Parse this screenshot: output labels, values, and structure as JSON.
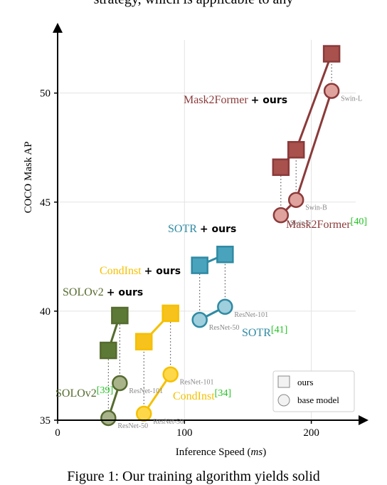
{
  "page": {
    "top_text": "strategy, which is applicable to any",
    "caption": "Figure 1: Our training algorithm yields solid"
  },
  "chart_data": {
    "type": "scatter",
    "xlabel": "Inference Speed",
    "xlabel_unit": "ms",
    "ylabel": "COCO Mask AP",
    "xlim": [
      0,
      235
    ],
    "ylim": [
      35,
      52.7
    ],
    "xticks": [
      0,
      100,
      200
    ],
    "yticks": [
      35,
      40,
      45,
      50
    ],
    "grid": true,
    "legend": {
      "position": "bottom-right",
      "ours_label": "ours",
      "base_label": "base model"
    },
    "groups": [
      {
        "id": "solov2",
        "color": "#556b2f",
        "fill": "#a9b38a",
        "sq_fill": "#5c7a35",
        "label_base": "SOLOv2",
        "label_base_ref": "[39]",
        "label_ours": "SOLOv2",
        "label_ours_suffix": "+ ours",
        "points": [
          {
            "base_x": 40,
            "base_y": 35.1,
            "ours_x": 40,
            "ours_y": 38.2,
            "tag": "ResNet-50"
          },
          {
            "base_x": 49,
            "base_y": 36.7,
            "ours_x": 49,
            "ours_y": 39.8,
            "tag": "ResNet-101"
          }
        ]
      },
      {
        "id": "condinst",
        "color": "#f5c000",
        "fill": "#ffd84a",
        "sq_fill": "#f7c21c",
        "label_base": "CondInst",
        "label_base_ref": "[34]",
        "label_ours": "CondInst",
        "label_ours_suffix": "+ ours",
        "points": [
          {
            "base_x": 68,
            "base_y": 35.3,
            "ours_x": 68,
            "ours_y": 38.6,
            "tag": "ResNet-50"
          },
          {
            "base_x": 89,
            "base_y": 37.1,
            "ours_x": 89,
            "ours_y": 39.9,
            "tag": "ResNet-101"
          }
        ]
      },
      {
        "id": "sotr",
        "color": "#2f8aa3",
        "fill": "#9fcedd",
        "sq_fill": "#4aa3bd",
        "label_base": "SOTR",
        "label_base_ref": "[41]",
        "label_ours": "SOTR",
        "label_ours_suffix": "+ ours",
        "points": [
          {
            "base_x": 112,
            "base_y": 39.6,
            "ours_x": 112,
            "ours_y": 42.1,
            "tag": "ResNet-50"
          },
          {
            "base_x": 132,
            "base_y": 40.2,
            "ours_x": 132,
            "ours_y": 42.6,
            "tag": "ResNet-101"
          }
        ]
      },
      {
        "id": "mask2former",
        "color": "#8b3a3a",
        "fill": "#e0a29c",
        "sq_fill": "#a8514d",
        "label_base": "Mask2Former",
        "label_base_ref": "[40]",
        "label_ours": "Mask2Former",
        "label_ours_suffix": "+ ours",
        "points": [
          {
            "base_x": 176,
            "base_y": 44.4,
            "ours_x": 176,
            "ours_y": 46.6,
            "tag": "Swin-S"
          },
          {
            "base_x": 188,
            "base_y": 45.1,
            "ours_x": 188,
            "ours_y": 47.4,
            "tag": "Swin-B"
          },
          {
            "base_x": 216,
            "base_y": 50.1,
            "ours_x": 216,
            "ours_y": 51.8,
            "tag": "Swin-L"
          }
        ]
      }
    ]
  }
}
